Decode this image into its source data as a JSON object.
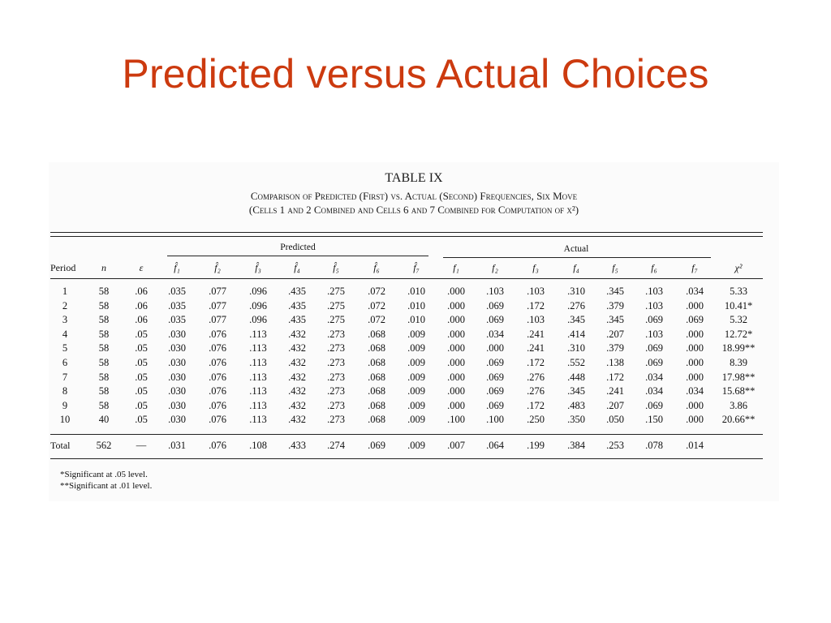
{
  "slide": {
    "title": "Predicted versus Actual Choices"
  },
  "table": {
    "number": "TABLE IX",
    "caption_line1": "Comparison of Predicted (First) vs. Actual (Second) Frequencies, Six Move",
    "caption_line2": "(Cells 1 and 2 Combined and Cells 6 and 7 Combined for Computation of χ²)",
    "group_predicted": "Predicted",
    "group_actual": "Actual",
    "headers": [
      "Period",
      "n",
      "ε",
      "f̂₁",
      "f̂₂",
      "f̂₃",
      "f̂₄",
      "f̂₅",
      "f̂₆",
      "f̂₇",
      "f₁",
      "f₂",
      "f₃",
      "f₄",
      "f₅",
      "f₆",
      "f₇",
      "χ²"
    ],
    "rows": [
      [
        "1",
        "58",
        ".06",
        ".035",
        ".077",
        ".096",
        ".435",
        ".275",
        ".072",
        ".010",
        ".000",
        ".103",
        ".103",
        ".310",
        ".345",
        ".103",
        ".034",
        "5.33"
      ],
      [
        "2",
        "58",
        ".06",
        ".035",
        ".077",
        ".096",
        ".435",
        ".275",
        ".072",
        ".010",
        ".000",
        ".069",
        ".172",
        ".276",
        ".379",
        ".103",
        ".000",
        "10.41*"
      ],
      [
        "3",
        "58",
        ".06",
        ".035",
        ".077",
        ".096",
        ".435",
        ".275",
        ".072",
        ".010",
        ".000",
        ".069",
        ".103",
        ".345",
        ".345",
        ".069",
        ".069",
        "5.32"
      ],
      [
        "4",
        "58",
        ".05",
        ".030",
        ".076",
        ".113",
        ".432",
        ".273",
        ".068",
        ".009",
        ".000",
        ".034",
        ".241",
        ".414",
        ".207",
        ".103",
        ".000",
        "12.72*"
      ],
      [
        "5",
        "58",
        ".05",
        ".030",
        ".076",
        ".113",
        ".432",
        ".273",
        ".068",
        ".009",
        ".000",
        ".000",
        ".241",
        ".310",
        ".379",
        ".069",
        ".000",
        "18.99**"
      ],
      [
        "6",
        "58",
        ".05",
        ".030",
        ".076",
        ".113",
        ".432",
        ".273",
        ".068",
        ".009",
        ".000",
        ".069",
        ".172",
        ".552",
        ".138",
        ".069",
        ".000",
        "8.39"
      ],
      [
        "7",
        "58",
        ".05",
        ".030",
        ".076",
        ".113",
        ".432",
        ".273",
        ".068",
        ".009",
        ".000",
        ".069",
        ".276",
        ".448",
        ".172",
        ".034",
        ".000",
        "17.98**"
      ],
      [
        "8",
        "58",
        ".05",
        ".030",
        ".076",
        ".113",
        ".432",
        ".273",
        ".068",
        ".009",
        ".000",
        ".069",
        ".276",
        ".345",
        ".241",
        ".034",
        ".034",
        "15.68**"
      ],
      [
        "9",
        "58",
        ".05",
        ".030",
        ".076",
        ".113",
        ".432",
        ".273",
        ".068",
        ".009",
        ".000",
        ".069",
        ".172",
        ".483",
        ".207",
        ".069",
        ".000",
        "3.86"
      ],
      [
        "10",
        "40",
        ".05",
        ".030",
        ".076",
        ".113",
        ".432",
        ".273",
        ".068",
        ".009",
        ".100",
        ".100",
        ".250",
        ".350",
        ".050",
        ".150",
        ".000",
        "20.66**"
      ]
    ],
    "total": [
      "Total",
      "562",
      "—",
      ".031",
      ".076",
      ".108",
      ".433",
      ".274",
      ".069",
      ".009",
      ".007",
      ".064",
      ".199",
      ".384",
      ".253",
      ".078",
      ".014",
      ""
    ],
    "notes": [
      "*Significant at .05 level.",
      "**Significant at .01 level."
    ]
  },
  "colors": {
    "title": "#cc3a0f",
    "text": "#111111"
  }
}
